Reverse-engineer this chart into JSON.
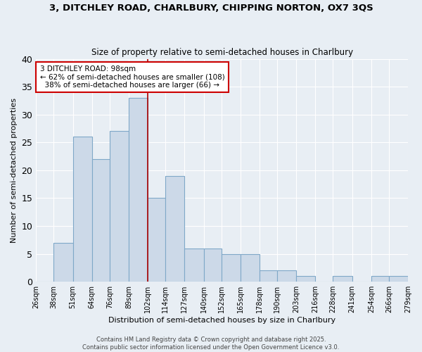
{
  "title": "3, DITCHLEY ROAD, CHARLBURY, CHIPPING NORTON, OX7 3QS",
  "subtitle": "Size of property relative to semi-detached houses in Charlbury",
  "xlabel": "Distribution of semi-detached houses by size in Charlbury",
  "ylabel": "Number of semi-detached properties",
  "bin_edges": [
    26,
    38,
    51,
    64,
    76,
    89,
    102,
    114,
    127,
    140,
    152,
    165,
    178,
    190,
    203,
    216,
    228,
    241,
    254,
    266,
    279
  ],
  "counts": [
    0,
    7,
    26,
    22,
    27,
    33,
    15,
    19,
    6,
    6,
    5,
    5,
    2,
    2,
    1,
    0,
    1,
    0,
    1,
    1
  ],
  "bar_color": "#ccd9e8",
  "bar_edge_color": "#7fa8c8",
  "vline_x": 102,
  "vline_color": "#aa0000",
  "annotation_text": "3 DITCHLEY ROAD: 98sqm\n← 62% of semi-detached houses are smaller (108)\n  38% of semi-detached houses are larger (66) →",
  "annotation_box_color": "#ffffff",
  "annotation_box_edge": "#cc0000",
  "ylim": [
    0,
    40
  ],
  "yticks": [
    0,
    5,
    10,
    15,
    20,
    25,
    30,
    35,
    40
  ],
  "tick_labels": [
    "26sqm",
    "38sqm",
    "51sqm",
    "64sqm",
    "76sqm",
    "89sqm",
    "102sqm",
    "114sqm",
    "127sqm",
    "140sqm",
    "152sqm",
    "165sqm",
    "178sqm",
    "190sqm",
    "203sqm",
    "216sqm",
    "228sqm",
    "241sqm",
    "254sqm",
    "266sqm",
    "279sqm"
  ],
  "footer_line1": "Contains HM Land Registry data © Crown copyright and database right 2025.",
  "footer_line2": "Contains public sector information licensed under the Open Government Licence v3.0.",
  "bg_color": "#e8eef4",
  "plot_bg_color": "#e8eef4",
  "grid_color": "#ffffff"
}
